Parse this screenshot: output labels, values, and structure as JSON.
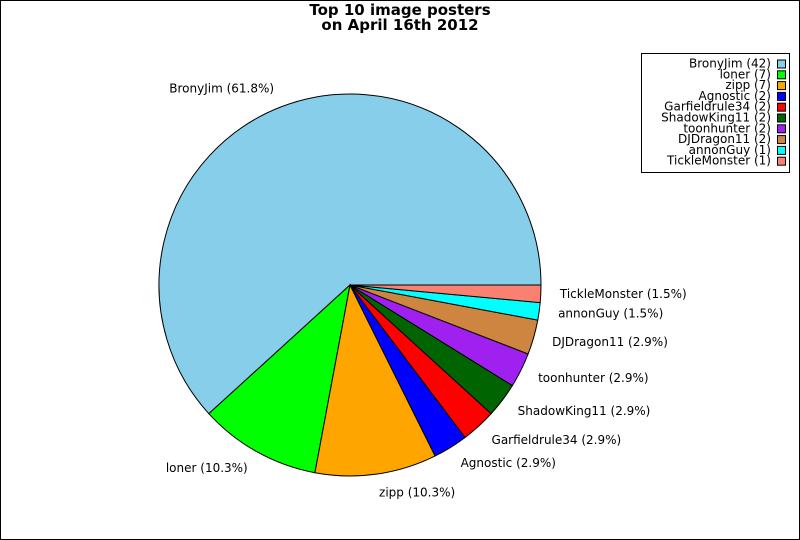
{
  "chart_data": {
    "type": "pie",
    "title": "Top 10 image posters\non April 16th 2012",
    "categories": [
      "BronyJim (42)",
      "loner (7)",
      "zipp (7)",
      "Agnostic (2)",
      "Garfieldrule34 (2)",
      "ShadowKing11 (2)",
      "toonhunter (2)",
      "DJDragon11 (2)",
      "annonGuy (1)",
      "TickleMonster (1)"
    ],
    "values": [
      42,
      7,
      7,
      2,
      2,
      2,
      2,
      2,
      1,
      1
    ],
    "value_labels": [
      "BronyJim (61.8%)",
      "loner (10.3%)",
      "zipp (10.3%)",
      "Agnostic (2.9%)",
      "Garfieldrule34 (2.9%)",
      "ShadowKing11 (2.9%)",
      "toonhunter (2.9%)",
      "DJDragon11 (2.9%)",
      "annonGuy (1.5%)",
      "TickleMonster (1.5%)"
    ],
    "colors": [
      "#87ceeb",
      "#00ff00",
      "#ffa500",
      "#0000ff",
      "#ff0000",
      "#006400",
      "#a020f0",
      "#cd853f",
      "#00ffff",
      "#fa8072"
    ],
    "legend": "upper right"
  }
}
